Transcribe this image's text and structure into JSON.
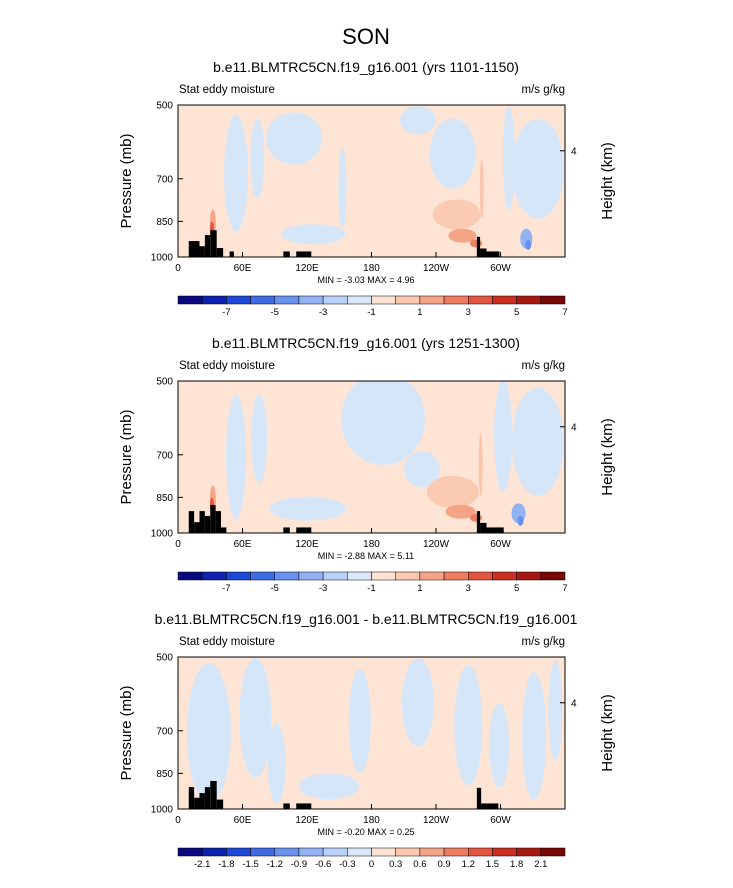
{
  "figure_title": "SON",
  "chart_data": [
    {
      "type": "heatmap",
      "title": "b.e11.BLMTRC5CN.f19_g16.001 (yrs 1101-1150)",
      "left_label": "Stat eddy moisture",
      "right_label": "m/s g/kg",
      "ylabel": "Pressure (mb)",
      "ylabel_right": "Height (km)",
      "yticks": [
        "500",
        "700",
        "850",
        "1000"
      ],
      "yticks_right": [
        "4"
      ],
      "xticks": [
        "0",
        "60E",
        "120E",
        "180",
        "120W",
        "60W"
      ],
      "minmax": "MIN = -3.03  MAX = 4.96",
      "colorbar_labels": [
        "-7",
        "-5",
        "-3",
        "-1",
        "1",
        "3",
        "5",
        "7"
      ]
    },
    {
      "type": "heatmap",
      "title": "b.e11.BLMTRC5CN.f19_g16.001 (yrs 1251-1300)",
      "left_label": "Stat eddy moisture",
      "right_label": "m/s g/kg",
      "ylabel": "Pressure (mb)",
      "ylabel_right": "Height (km)",
      "yticks": [
        "500",
        "700",
        "850",
        "1000"
      ],
      "yticks_right": [
        "4"
      ],
      "xticks": [
        "0",
        "60E",
        "120E",
        "180",
        "120W",
        "60W"
      ],
      "minmax": "MIN = -2.88  MAX =  5.11",
      "colorbar_labels": [
        "-7",
        "-5",
        "-3",
        "-1",
        "1",
        "3",
        "5",
        "7"
      ]
    },
    {
      "type": "heatmap",
      "title": "b.e11.BLMTRC5CN.f19_g16.001 - b.e11.BLMTRC5CN.f19_g16.001",
      "left_label": "Stat eddy moisture",
      "right_label": "m/s g/kg",
      "ylabel": "Pressure (mb)",
      "ylabel_right": "Height (km)",
      "yticks": [
        "500",
        "700",
        "850",
        "1000"
      ],
      "yticks_right": [
        "4"
      ],
      "xticks": [
        "0",
        "60E",
        "120E",
        "180",
        "120W",
        "60W"
      ],
      "minmax": "MIN = -0.20  MAX =  0.25",
      "colorbar_labels": [
        "-2.1",
        "-1.8",
        "-1.5",
        "-1.2",
        "-0.9",
        "-0.6",
        "-0.3",
        "0",
        "0.3",
        "0.6",
        "0.9",
        "1.2",
        "1.5",
        "1.8",
        "2.1"
      ]
    }
  ],
  "colors": {
    "palette_16": [
      "#0a0a80",
      "#0e22b0",
      "#1d47d6",
      "#3f6ae6",
      "#6890ee",
      "#92b2f4",
      "#b9d0f8",
      "#dbe7fb",
      "#fde3d4",
      "#fbc8b0",
      "#f6a487",
      "#ef7c5f",
      "#e4553f",
      "#cc2f22",
      "#a81810",
      "#780805"
    ],
    "pale_blue": "#d5e6f9",
    "pale_orange": "#fde4d4",
    "terrain": "#000000"
  }
}
